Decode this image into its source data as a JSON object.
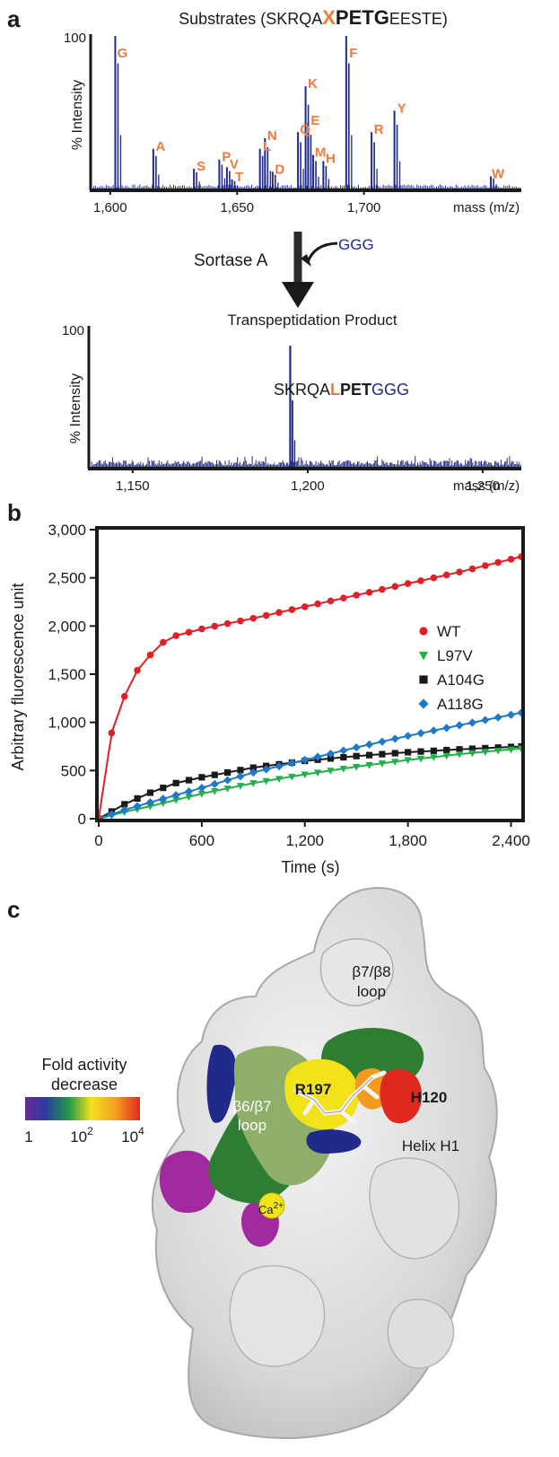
{
  "panels": {
    "a": "a",
    "b": "b",
    "c": "c"
  },
  "colors": {
    "spectrum": "#1f2a8a",
    "orange": "#f07a3a",
    "wt": "#e02027",
    "l97v": "#22b04b",
    "a104g": "#1a1a1a",
    "a118g": "#1f78c8",
    "axis": "#1a1a1a"
  },
  "panel_a": {
    "title_prefix": "Substrates (SKRQA",
    "title_x": "X",
    "title_petg": "PETG",
    "title_suffix": "EESTE)",
    "ylabel": "% Intensity",
    "ytick_top": "100",
    "xticks": [
      "1,600",
      "1,650",
      "1,700"
    ],
    "xlabel": "mass (m/z)",
    "peaks": [
      "G",
      "A",
      "S",
      "P",
      "V",
      "T",
      "L",
      "N",
      "D",
      "Q",
      "K",
      "E",
      "M",
      "H",
      "F",
      "R",
      "Y",
      "W"
    ],
    "arrow_label": "Sortase A",
    "ggg": "GGG",
    "product_title": "Transpeptidation Product",
    "product_ylabel": "% Intensity",
    "product_ytick_top": "100",
    "product_xticks": [
      "1,150",
      "1,200",
      "1,250"
    ],
    "product_xlabel": "mass (m/z)",
    "product_seq_a": "SKRQA",
    "product_seq_l": "L",
    "product_seq_pet": "PET",
    "product_seq_ggg": "GGG"
  },
  "chart_data": [
    {
      "type": "bar",
      "title": "Substrates (SKRQAXPETGEESTE)",
      "ylabel": "% Intensity",
      "xlabel": "mass (m/z)",
      "xlim": [
        1593,
        1762
      ],
      "ylim": [
        0,
        100
      ],
      "x": [
        1602,
        1617,
        1633,
        1643,
        1646,
        1648,
        1659,
        1661,
        1664,
        1674,
        1677,
        1678,
        1680,
        1684,
        1693,
        1703,
        1712,
        1750
      ],
      "labels": [
        "G",
        "A",
        "S",
        "P",
        "V",
        "T",
        "L",
        "N",
        "D",
        "Q",
        "K",
        "E",
        "M",
        "H",
        "F",
        "R",
        "Y",
        "W"
      ],
      "values": [
        100,
        26,
        13,
        19,
        14,
        6,
        26,
        33,
        11,
        37,
        67,
        43,
        22,
        18,
        100,
        37,
        51,
        8
      ]
    },
    {
      "type": "bar",
      "title": "Transpeptidation Product",
      "ylabel": "% Intensity",
      "xlabel": "mass (m/z)",
      "xlim": [
        1138,
        1261
      ],
      "ylim": [
        0,
        100
      ],
      "x": [
        1195
      ],
      "labels": [
        "SKRQALPETGGG"
      ],
      "values": [
        87
      ]
    },
    {
      "type": "line",
      "xlabel": "Time (s)",
      "ylabel": "Arbitrary fluorescence unit",
      "xlim": [
        0,
        2460
      ],
      "ylim": [
        0,
        3000
      ],
      "xticks": [
        "0",
        "600",
        "1,200",
        "1,800",
        "2,400"
      ],
      "yticks": [
        "0",
        "500",
        "1,000",
        "1,500",
        "2,000",
        "2,500",
        "3,000"
      ],
      "legend": "right",
      "series": [
        {
          "name": "WT",
          "color": "#e02027",
          "marker": "circle",
          "x": [
            0,
            75,
            150,
            225,
            300,
            375,
            450,
            600,
            900,
            1200,
            1500,
            1800,
            2100,
            2460
          ],
          "y": [
            0,
            890,
            1270,
            1540,
            1700,
            1830,
            1900,
            1970,
            2080,
            2200,
            2320,
            2440,
            2560,
            2720
          ]
        },
        {
          "name": "L97V",
          "color": "#22b04b",
          "marker": "triangle",
          "x": [
            0,
            150,
            300,
            600,
            900,
            1200,
            1500,
            1800,
            2100,
            2460
          ],
          "y": [
            0,
            70,
            130,
            260,
            370,
            460,
            540,
            610,
            670,
            730
          ]
        },
        {
          "name": "A104G",
          "color": "#1a1a1a",
          "marker": "square",
          "x": [
            0,
            150,
            300,
            450,
            600,
            900,
            1200,
            1500,
            1800,
            2100,
            2460
          ],
          "y": [
            0,
            150,
            270,
            370,
            430,
            530,
            600,
            650,
            690,
            720,
            750
          ]
        },
        {
          "name": "A118G",
          "color": "#1f78c8",
          "marker": "diamond",
          "x": [
            0,
            150,
            300,
            600,
            900,
            1200,
            1500,
            1800,
            2100,
            2460
          ],
          "y": [
            0,
            90,
            170,
            320,
            480,
            610,
            740,
            860,
            970,
            1100
          ]
        }
      ]
    }
  ],
  "panel_c": {
    "legend_title_1": "Fold activity",
    "legend_title_2": "decrease",
    "scale_1": "1",
    "scale_2_base": "10",
    "scale_2_exp": "2",
    "scale_3_base": "10",
    "scale_3_exp": "4",
    "loop_b7b8_1": "β7/β8",
    "loop_b7b8_2": "loop",
    "loop_b6b7_1": "β6/β7",
    "loop_b6b7_2": "loop",
    "r197": "R197",
    "h120": "H120",
    "helix": "Helix H1",
    "ca_base": "Ca",
    "ca_exp": "2+"
  }
}
